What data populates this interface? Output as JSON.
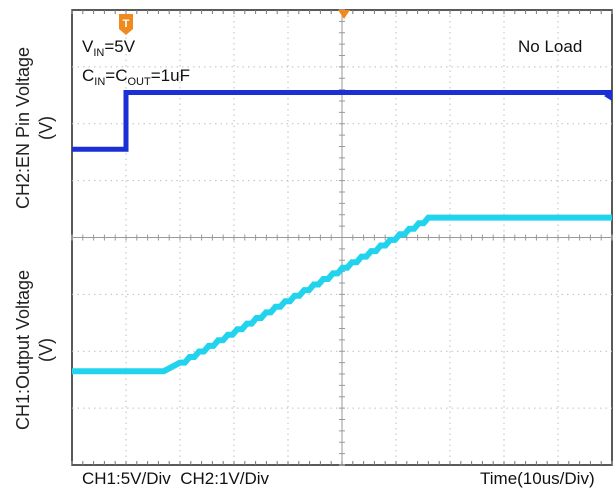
{
  "chart_data": {
    "type": "line",
    "title": "",
    "x": {
      "div_count": 10,
      "unit_label": "Time(10us/Div)"
    },
    "scale_label": "CH1:5V/Div  CH2:1V/Div",
    "grid": true,
    "series": [
      {
        "name": "CH2:EN Pin Voltage",
        "axis_label": "CH2:EN Pin Voltage\n(V)",
        "axis_label_line1": "CH2:EN Pin Voltage",
        "axis_label_line2": "(V)",
        "color": "#1a2fd6",
        "div_per_unit": "1V/Div",
        "points_div": [
          [
            0,
            1.55
          ],
          [
            1.0,
            1.55
          ],
          [
            1.0,
            2.55
          ],
          [
            10,
            2.55
          ]
        ]
      },
      {
        "name": "CH1:Output Voltage",
        "axis_label": "CH1:Output Voltage\n(V)",
        "axis_label_line1": "CH1:Output Voltage",
        "axis_label_line2": "(V)",
        "color": "#22d3ee",
        "div_per_unit": "5V/Div",
        "points_div": [
          [
            0,
            -2.35
          ],
          [
            1.7,
            -2.35
          ],
          [
            2.0,
            -2.2
          ],
          [
            6.6,
            0.35
          ],
          [
            10,
            0.35
          ]
        ]
      }
    ],
    "annotations": {
      "vin": {
        "main": "V",
        "sub": "IN",
        "tail": "=5V"
      },
      "cin": {
        "main1": "C",
        "sub1": "IN",
        "mid": "=C",
        "sub2": "OUT",
        "tail": "=1uF"
      },
      "no_load": "No Load",
      "trigger_marker": "T"
    },
    "colors": {
      "background": "#ffffff",
      "grid": "#bfbfbf",
      "center_axis": "#999999",
      "trigger_marker": "#f08a1e"
    }
  }
}
